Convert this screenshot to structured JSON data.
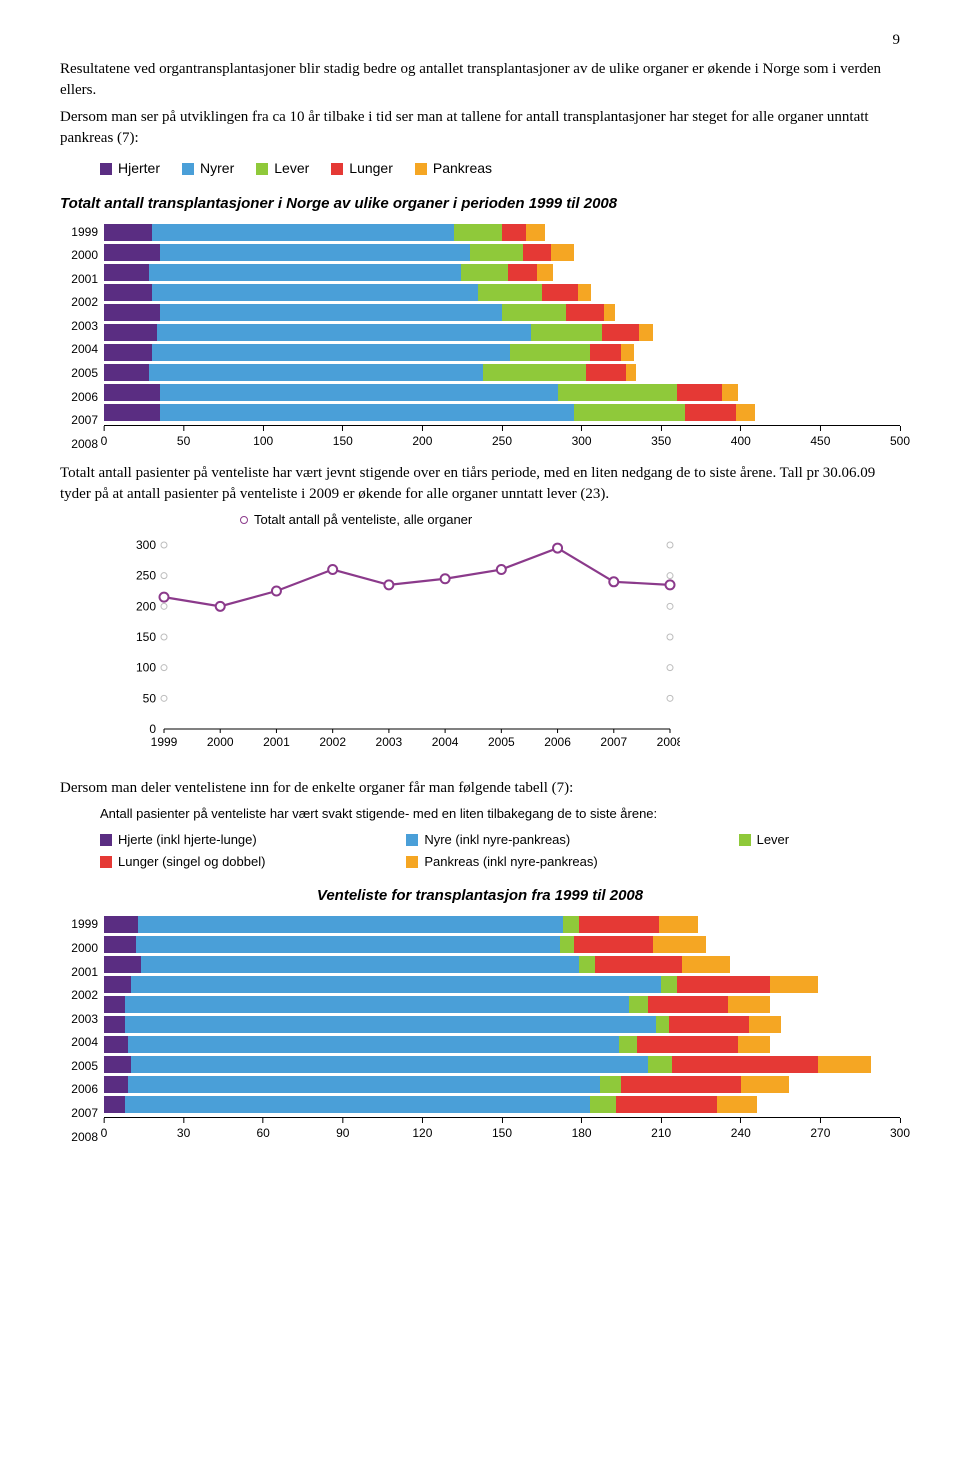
{
  "page_number": "9",
  "para1": "Resultatene ved organtransplantasjoner blir stadig bedre og antallet transplantasjoner av de ulike organer er økende i Norge som i verden ellers.",
  "para2": "Dersom man ser på utviklingen fra ca 10 år tilbake i tid ser man at tallene for antall transplantasjoner har steget for alle organer unntatt pankreas (7):",
  "para3": "Totalt antall pasienter på venteliste har vært jevnt stigende over en tiårs periode, med en liten nedgang de to siste årene. Tall pr 30.06.09 tyder på at antall pasienter på venteliste i 2009 er økende for alle organer unntatt lever (23).",
  "para4": "Dersom man deler ventelistene inn for de enkelte organer får man følgende tabell (7):",
  "subtitle3": "Antall pasienter på venteliste har vært svakt stigende- med en liten tilbakegang de to siste årene:",
  "chart1": {
    "title": "Totalt antall transplantasjoner i Norge av ulike organer i perioden 1999 til 2008",
    "legend": [
      {
        "label": "Hjerter",
        "color": "#5a2d82"
      },
      {
        "label": "Nyrer",
        "color": "#4a9fd8"
      },
      {
        "label": "Lever",
        "color": "#8fc93a"
      },
      {
        "label": "Lunger",
        "color": "#e53935"
      },
      {
        "label": "Pankreas",
        "color": "#f5a623"
      }
    ],
    "years": [
      "1999",
      "2000",
      "2001",
      "2002",
      "2003",
      "2004",
      "2005",
      "2006",
      "2007",
      "2008"
    ],
    "series": [
      [
        30,
        190,
        30,
        15,
        12
      ],
      [
        35,
        195,
        33,
        18,
        14
      ],
      [
        28,
        196,
        30,
        18,
        10
      ],
      [
        30,
        205,
        40,
        23,
        8
      ],
      [
        35,
        215,
        40,
        24,
        7
      ],
      [
        33,
        235,
        45,
        23,
        9
      ],
      [
        30,
        225,
        50,
        20,
        8
      ],
      [
        28,
        210,
        65,
        25,
        6
      ],
      [
        35,
        250,
        75,
        28,
        10
      ],
      [
        35,
        260,
        70,
        32,
        12
      ]
    ],
    "xmax": 500,
    "xstep": 50
  },
  "chart2": {
    "legend_label": "Totalt antall på venteliste, alle organer",
    "color": "#8b3a8b",
    "years": [
      "1999",
      "2000",
      "2001",
      "2002",
      "2003",
      "2004",
      "2005",
      "2006",
      "2007",
      "2008"
    ],
    "values": [
      215,
      200,
      225,
      260,
      235,
      245,
      260,
      295,
      240,
      235
    ],
    "ymax": 300,
    "ystep": 50
  },
  "chart3": {
    "title": "Venteliste for transplantasjon fra 1999 til 2008",
    "legend": [
      {
        "label": "Hjerte (inkl hjerte-lunge)",
        "color": "#5a2d82"
      },
      {
        "label": "Nyre (inkl nyre-pankreas)",
        "color": "#4a9fd8"
      },
      {
        "label": "Lever",
        "color": "#8fc93a"
      },
      {
        "label": "Lunger (singel og dobbel)",
        "color": "#e53935"
      },
      {
        "label": "Pankreas (inkl nyre-pankreas)",
        "color": "#f5a623"
      }
    ],
    "years": [
      "1999",
      "2000",
      "2001",
      "2002",
      "2003",
      "2004",
      "2005",
      "2006",
      "2007",
      "2008"
    ],
    "series": [
      [
        13,
        160,
        6,
        30,
        15
      ],
      [
        12,
        160,
        5,
        30,
        20
      ],
      [
        14,
        165,
        6,
        33,
        18
      ],
      [
        10,
        200,
        6,
        35,
        18
      ],
      [
        8,
        190,
        7,
        30,
        16
      ],
      [
        8,
        200,
        5,
        30,
        12
      ],
      [
        9,
        185,
        7,
        38,
        12
      ],
      [
        10,
        195,
        9,
        55,
        20
      ],
      [
        9,
        178,
        8,
        45,
        18
      ],
      [
        8,
        175,
        10,
        38,
        15
      ]
    ],
    "xmax": 300,
    "xstep": 30
  }
}
